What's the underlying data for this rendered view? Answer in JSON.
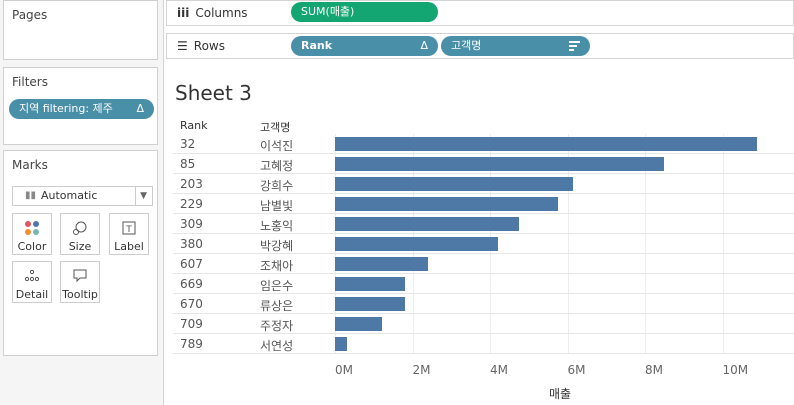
{
  "pages_card": {
    "title": "Pages"
  },
  "filters_card": {
    "title": "Filters",
    "filter_pill": "지역 filtering: 제주",
    "filter_delta": "Δ"
  },
  "marks_card": {
    "title": "Marks",
    "mark_type": "Automatic",
    "buttons": [
      {
        "label": "Color",
        "icon": "color-dots-icon"
      },
      {
        "label": "Size",
        "icon": "size-icon"
      },
      {
        "label": "Label",
        "icon": "label-icon"
      },
      {
        "label": "Detail",
        "icon": "detail-icon"
      },
      {
        "label": "Tooltip",
        "icon": "tooltip-icon"
      }
    ]
  },
  "columns_shelf": {
    "label": "Columns",
    "pill": "SUM(매출)"
  },
  "rows_shelf": {
    "label": "Rows",
    "pills": [
      {
        "label": "Rank",
        "marker": "Δ"
      },
      {
        "label": "고객명",
        "marker": "sort-icon"
      }
    ]
  },
  "sheet": {
    "title": "Sheet 3",
    "headers": [
      "Rank",
      "고객명"
    ]
  },
  "colors": {
    "bar": "#4e79a7",
    "pill_blue": "#4a8fa8",
    "pill_green": "#13a672"
  },
  "chart_data": {
    "type": "bar",
    "orientation": "horizontal",
    "rows": [
      {
        "rank": "32",
        "name": "이석진",
        "value": 10.9
      },
      {
        "rank": "85",
        "name": "고혜정",
        "value": 8.5
      },
      {
        "rank": "203",
        "name": "강희수",
        "value": 6.15
      },
      {
        "rank": "229",
        "name": "남별빛",
        "value": 5.75
      },
      {
        "rank": "309",
        "name": "노홍익",
        "value": 4.75
      },
      {
        "rank": "380",
        "name": "박강혜",
        "value": 4.2
      },
      {
        "rank": "607",
        "name": "조채아",
        "value": 2.4
      },
      {
        "rank": "669",
        "name": "임은수",
        "value": 1.8
      },
      {
        "rank": "670",
        "name": "류상은",
        "value": 1.8
      },
      {
        "rank": "709",
        "name": "주정자",
        "value": 1.2
      },
      {
        "rank": "789",
        "name": "서연성",
        "value": 0.3
      }
    ],
    "value_unit": "M",
    "xlim": [
      0,
      11.2
    ],
    "ticks": [
      "0M",
      "2M",
      "4M",
      "6M",
      "8M",
      "10M"
    ],
    "tick_values": [
      0,
      2,
      4,
      6,
      8,
      10
    ],
    "xlabel": "매출",
    "grid": true
  }
}
